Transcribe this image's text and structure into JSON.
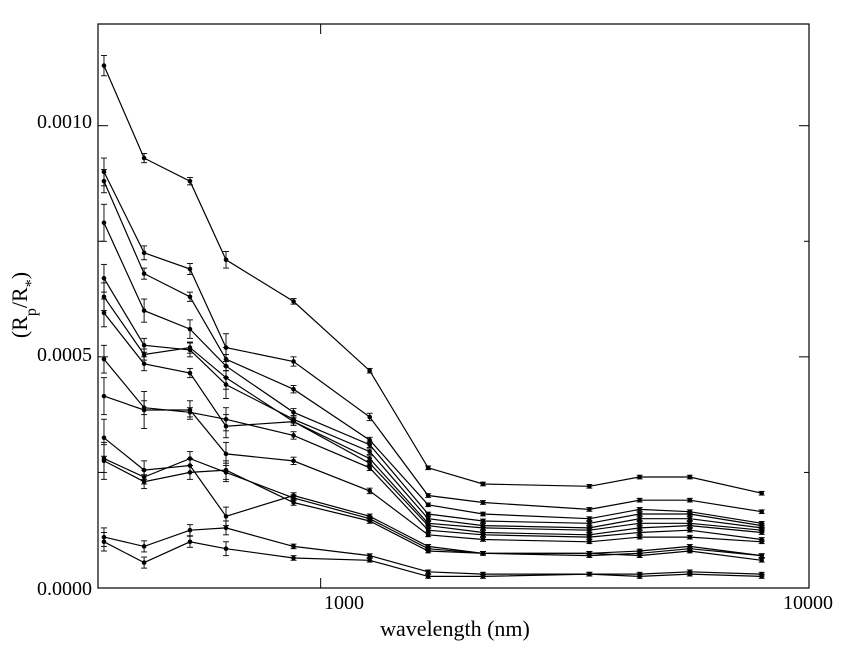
{
  "chart_data": {
    "type": "line",
    "title": "",
    "xlabel": "wavelength (nm)",
    "ylabel": {
      "open": "(R",
      "sub1": "p",
      "mid": "/R",
      "sub2": "*",
      "close": ")"
    },
    "x_scale": "log",
    "xlim": [
      350,
      10000
    ],
    "ylim": [
      0,
      0.00122
    ],
    "x_tick_labels": [
      "1000",
      "10000"
    ],
    "y_tick_labels": [
      "0.0000",
      "0.0005",
      "0.0010"
    ],
    "grid": false,
    "legend": "none",
    "x": [
      360,
      435,
      540,
      640,
      880,
      1260,
      1660,
      2150,
      3550,
      4500,
      5700,
      8000
    ],
    "series": [
      {
        "values": [
          0.00113,
          0.00093,
          0.00088,
          0.00071,
          0.00062,
          0.00047,
          0.00026,
          0.000225,
          0.00022,
          0.00024,
          0.00024,
          0.000205
        ],
        "errors": [
          2.2e-05,
          1e-05,
          8e-06,
          1.8e-05,
          6e-06,
          5e-06,
          4e-06,
          4e-06,
          4e-06,
          4e-06,
          4e-06,
          4e-06
        ]
      },
      {
        "values": [
          0.0009,
          0.000725,
          0.00069,
          0.00052,
          0.00049,
          0.00037,
          0.0002,
          0.000185,
          0.00017,
          0.00019,
          0.00019,
          0.000165
        ],
        "errors": [
          3e-05,
          1.5e-05,
          1.2e-05,
          3e-05,
          1e-05,
          8e-06,
          4e-06,
          4e-06,
          4e-06,
          4e-06,
          4e-06,
          4e-06
        ]
      },
      {
        "values": [
          0.00088,
          0.00068,
          0.00063,
          0.000495,
          0.00043,
          0.00032,
          0.00018,
          0.00016,
          0.00015,
          0.00017,
          0.000165,
          0.00014
        ],
        "errors": [
          2.5e-05,
          1.2e-05,
          1e-05,
          2.5e-05,
          8e-06,
          6e-06,
          4e-06,
          4e-06,
          4e-06,
          4e-06,
          4e-06,
          4e-06
        ]
      },
      {
        "values": [
          0.00079,
          0.0006,
          0.00056,
          0.00048,
          0.00038,
          0.00031,
          0.00016,
          0.000145,
          0.00014,
          0.00016,
          0.00016,
          0.000135
        ],
        "errors": [
          4e-05,
          2.5e-05,
          2e-05,
          2.5e-05,
          8e-06,
          6e-06,
          4e-06,
          4e-06,
          4e-06,
          4e-06,
          4e-06,
          4e-06
        ]
      },
      {
        "values": [
          0.00067,
          0.000525,
          0.000515,
          0.00044,
          0.000365,
          0.000295,
          0.00015,
          0.000135,
          0.00013,
          0.00015,
          0.00015,
          0.00013
        ],
        "errors": [
          3e-05,
          1.5e-05,
          1.5e-05,
          3e-05,
          8e-06,
          6e-06,
          4e-06,
          4e-06,
          4e-06,
          4e-06,
          4e-06,
          4e-06
        ]
      },
      {
        "values": [
          0.00063,
          0.000505,
          0.00052,
          0.000455,
          0.00036,
          0.00028,
          0.00014,
          0.00013,
          0.000125,
          0.00014,
          0.00014,
          0.000125
        ],
        "errors": [
          3e-05,
          1.2e-05,
          1.2e-05,
          2.5e-05,
          8e-06,
          6e-06,
          4e-06,
          4e-06,
          4e-06,
          4e-06,
          4e-06,
          4e-06
        ]
      },
      {
        "values": [
          0.000595,
          0.000485,
          0.000465,
          0.00035,
          0.00036,
          0.00027,
          0.000135,
          0.00012,
          0.000115,
          0.00013,
          0.000135,
          0.00012
        ],
        "errors": [
          3e-05,
          1.5e-05,
          1e-05,
          2.5e-05,
          8e-06,
          6e-06,
          4e-06,
          4e-06,
          4e-06,
          4e-06,
          4e-06,
          4e-06
        ]
      },
      {
        "values": [
          0.000495,
          0.00039,
          0.00038,
          0.000365,
          0.00033,
          0.00026,
          0.000125,
          0.000115,
          0.00011,
          0.00012,
          0.000125,
          0.000105
        ],
        "errors": [
          3e-05,
          1.5e-05,
          1e-05,
          2.5e-05,
          8e-06,
          6e-06,
          4e-06,
          4e-06,
          4e-06,
          4e-06,
          4e-06,
          4e-06
        ]
      },
      {
        "values": [
          0.000415,
          0.000385,
          0.000385,
          0.00029,
          0.000275,
          0.00021,
          0.000115,
          0.000105,
          0.0001,
          0.00011,
          0.00011,
          0.0001
        ],
        "errors": [
          4e-05,
          4e-05,
          2e-05,
          2.5e-05,
          8e-06,
          6e-06,
          4e-06,
          4e-06,
          4e-06,
          4e-06,
          4e-06,
          4e-06
        ]
      },
      {
        "values": [
          0.000325,
          0.000255,
          0.000265,
          0.000155,
          0.0002,
          0.000155,
          9e-05,
          7.5e-05,
          7.5e-05,
          8e-05,
          9e-05,
          7e-05
        ],
        "errors": [
          4e-05,
          2e-05,
          1.5e-05,
          2e-05,
          6e-06,
          5e-06,
          4e-06,
          4e-06,
          4e-06,
          4e-06,
          4e-06,
          4e-06
        ]
      },
      {
        "values": [
          0.00028,
          0.00024,
          0.00028,
          0.00025,
          0.000195,
          0.00015,
          8.5e-05,
          7.5e-05,
          7e-05,
          7.5e-05,
          8.5e-05,
          7e-05
        ],
        "errors": [
          3e-05,
          1.5e-05,
          1.5e-05,
          2e-05,
          6e-06,
          5e-06,
          4e-06,
          4e-06,
          4e-06,
          4e-06,
          4e-06,
          4e-06
        ]
      },
      {
        "values": [
          0.000275,
          0.00023,
          0.00025,
          0.000255,
          0.000185,
          0.000145,
          8e-05,
          7.5e-05,
          7.5e-05,
          7e-05,
          8e-05,
          6e-05
        ],
        "errors": [
          4e-05,
          1.5e-05,
          1.5e-05,
          2e-05,
          6e-06,
          5e-06,
          4e-06,
          4e-06,
          4e-06,
          4e-06,
          4e-06,
          4e-06
        ]
      },
      {
        "values": [
          0.00011,
          9e-05,
          0.000125,
          0.00013,
          9e-05,
          7e-05,
          3.5e-05,
          3e-05,
          3e-05,
          3e-05,
          3.5e-05,
          3e-05
        ],
        "errors": [
          2e-05,
          1.2e-05,
          1.2e-05,
          1.5e-05,
          5e-06,
          4e-06,
          4e-06,
          4e-06,
          4e-06,
          4e-06,
          4e-06,
          4e-06
        ]
      },
      {
        "values": [
          0.0001,
          5.5e-05,
          0.0001,
          8.5e-05,
          6.5e-05,
          6e-05,
          2.5e-05,
          2.5e-05,
          3e-05,
          2.5e-05,
          3e-05,
          2.5e-05
        ],
        "errors": [
          2e-05,
          1.2e-05,
          1.2e-05,
          1.5e-05,
          5e-06,
          4e-06,
          4e-06,
          4e-06,
          4e-06,
          4e-06,
          4e-06,
          4e-06
        ]
      }
    ]
  }
}
